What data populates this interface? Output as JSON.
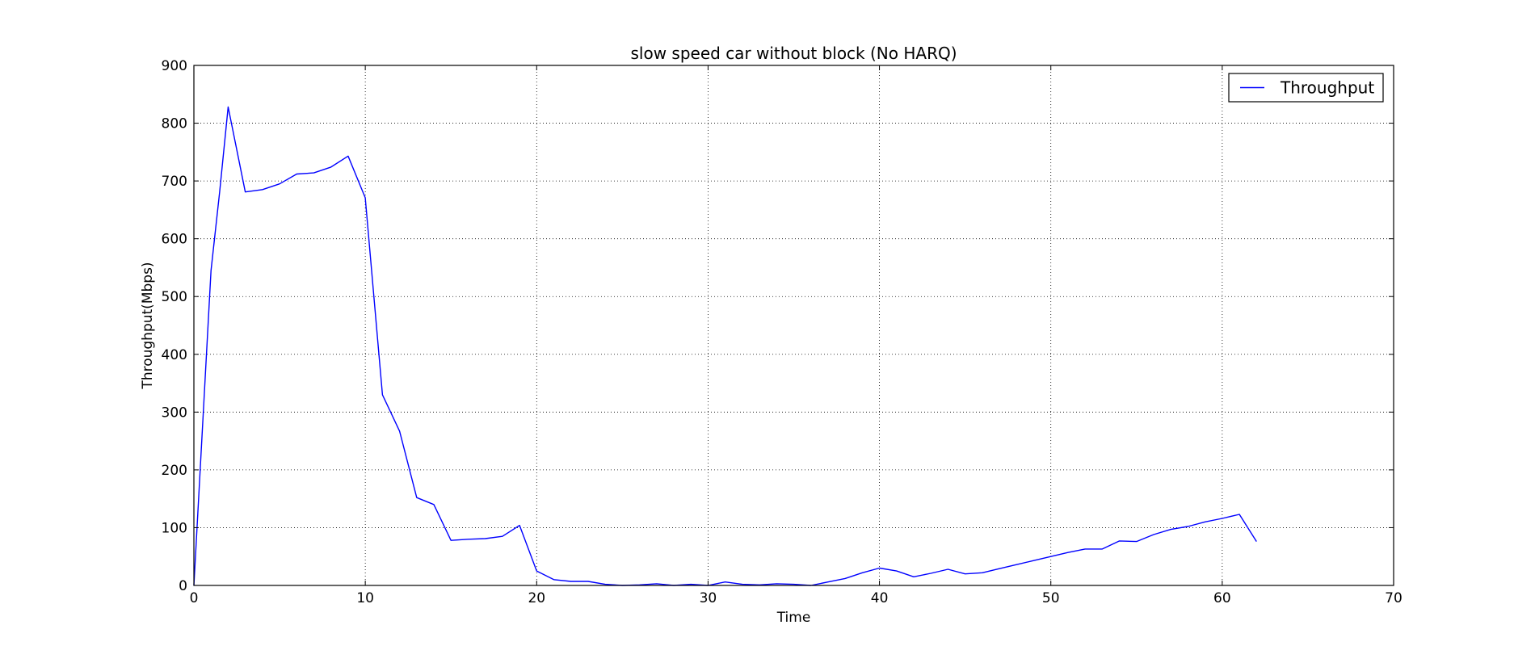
{
  "chart_data": {
    "type": "line",
    "title": "slow speed car without block (No HARQ)",
    "xlabel": "Time",
    "ylabel": "Throughput(Mbps)",
    "xlim": [
      0,
      70
    ],
    "ylim": [
      0,
      900
    ],
    "xticks": [
      0,
      10,
      20,
      30,
      40,
      50,
      60,
      70
    ],
    "yticks": [
      0,
      100,
      200,
      300,
      400,
      500,
      600,
      700,
      800,
      900
    ],
    "grid": true,
    "legend_position": "top-right",
    "series": [
      {
        "name": "Throughput",
        "color": "#0000ff",
        "x": [
          0,
          1,
          1.5,
          2,
          3,
          4,
          5,
          6,
          7,
          8,
          9,
          10,
          11,
          12,
          13,
          14,
          15,
          16,
          17,
          18,
          19,
          20,
          21,
          22,
          23,
          24,
          25,
          26,
          27,
          28,
          29,
          30,
          31,
          32,
          33,
          34,
          35,
          36,
          37,
          38,
          39,
          40,
          41,
          42,
          43,
          44,
          45,
          46,
          47,
          48,
          49,
          50,
          51,
          52,
          53,
          54,
          55,
          56,
          57,
          58,
          59,
          60,
          61,
          62
        ],
        "y": [
          0,
          545,
          680,
          828,
          681,
          685,
          695,
          712,
          714,
          724,
          743,
          671,
          330,
          267,
          152,
          140,
          78,
          80,
          81,
          85,
          104,
          25,
          10,
          7,
          7,
          2,
          0,
          1,
          3,
          0,
          2,
          0,
          6,
          2,
          1,
          3,
          2,
          0,
          6,
          12,
          22,
          30,
          25,
          15,
          21,
          28,
          20,
          22,
          29,
          36,
          43,
          50,
          57,
          63,
          63,
          77,
          76,
          88,
          97,
          102,
          110,
          116,
          123,
          76
        ]
      }
    ]
  }
}
